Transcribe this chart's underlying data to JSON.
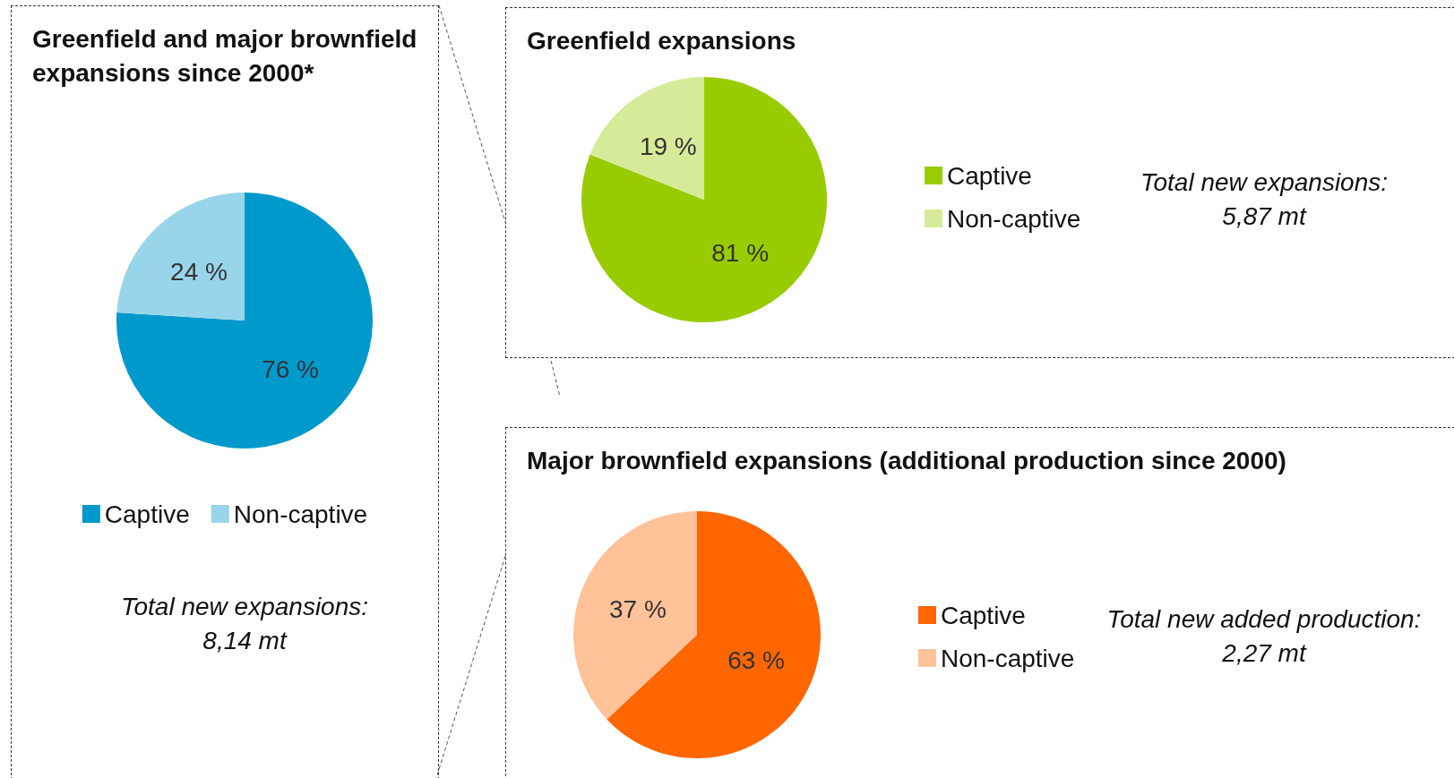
{
  "chart_data": [
    {
      "type": "pie",
      "title": "Greenfield and major brownfield expansions since 2000*",
      "categories": [
        "Captive",
        "Non-captive"
      ],
      "values": [
        76,
        24
      ],
      "value_labels": [
        "76 %",
        "24 %"
      ],
      "colors": [
        "#0099cc",
        "#99d5ea"
      ],
      "legend": "bottom",
      "annotations": [
        "Total new expansions:",
        "8,14 mt"
      ]
    },
    {
      "type": "pie",
      "title": "Greenfield expansions",
      "categories": [
        "Captive",
        "Non-captive"
      ],
      "values": [
        81,
        19
      ],
      "value_labels": [
        "81 %",
        "19 %"
      ],
      "colors": [
        "#99cc00",
        "#d6eb99"
      ],
      "legend": "right",
      "annotations": [
        "Total new expansions:",
        "5,87 mt"
      ]
    },
    {
      "type": "pie",
      "title": "Major brownfield expansions (additional production since 2000)",
      "categories": [
        "Captive",
        "Non-captive"
      ],
      "values": [
        63,
        37
      ],
      "value_labels": [
        "63 %",
        "37 %"
      ],
      "colors": [
        "#ff6600",
        "#ffc299"
      ],
      "legend": "right",
      "annotations": [
        "Total new added production:",
        "2,27 mt"
      ]
    }
  ]
}
